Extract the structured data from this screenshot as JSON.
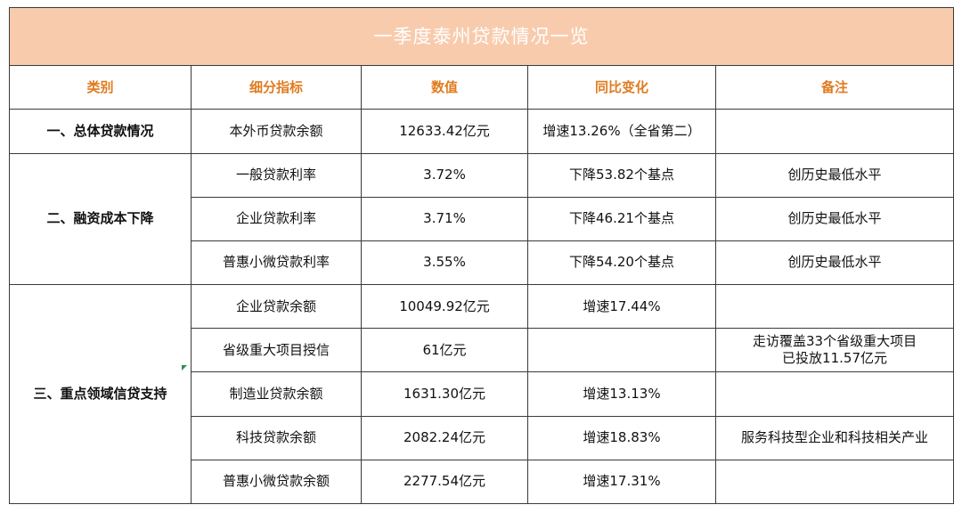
{
  "title": "一季度泰州贷款情况一览",
  "headers": {
    "category": "类别",
    "indicator": "细分指标",
    "value": "数值",
    "change": "同比变化",
    "remark": "备注"
  },
  "categories": {
    "c1": "一、总体贷款情况",
    "c2": "二、融资成本下降",
    "c3": "三、重点领域信贷支持"
  },
  "rows": [
    {
      "indicator": "本外币贷款余额",
      "value": "12633.42亿元",
      "change": "增速13.26%（全省第二）",
      "remark": ""
    },
    {
      "indicator": "一般贷款利率",
      "value": "3.72%",
      "change": "下降53.82个基点",
      "remark": "创历史最低水平"
    },
    {
      "indicator": "企业贷款利率",
      "value": "3.71%",
      "change": "下降46.21个基点",
      "remark": "创历史最低水平"
    },
    {
      "indicator": "普惠小微贷款利率",
      "value": "3.55%",
      "change": "下降54.20个基点",
      "remark": "创历史最低水平"
    },
    {
      "indicator": "企业贷款余额",
      "value": "10049.92亿元",
      "change": "增速17.44%",
      "remark": ""
    },
    {
      "indicator": "省级重大项目授信",
      "value": "61亿元",
      "change": "",
      "remark_line1": "走访覆盖33个省级重大项目",
      "remark_line2": "已投放11.57亿元"
    },
    {
      "indicator": "制造业贷款余额",
      "value": "1631.30亿元",
      "change": "增速13.13%",
      "remark": ""
    },
    {
      "indicator": "科技贷款余额",
      "value": "2082.24亿元",
      "change": "增速18.83%",
      "remark": "服务科技型企业和科技相关产业"
    },
    {
      "indicator": "普惠小微贷款余额",
      "value": "2277.54亿元",
      "change": "增速17.31%",
      "remark": ""
    }
  ],
  "colors": {
    "title_bg": "#f8cbad",
    "header_text": "#e07b1f",
    "border": "#3a3a3a"
  }
}
